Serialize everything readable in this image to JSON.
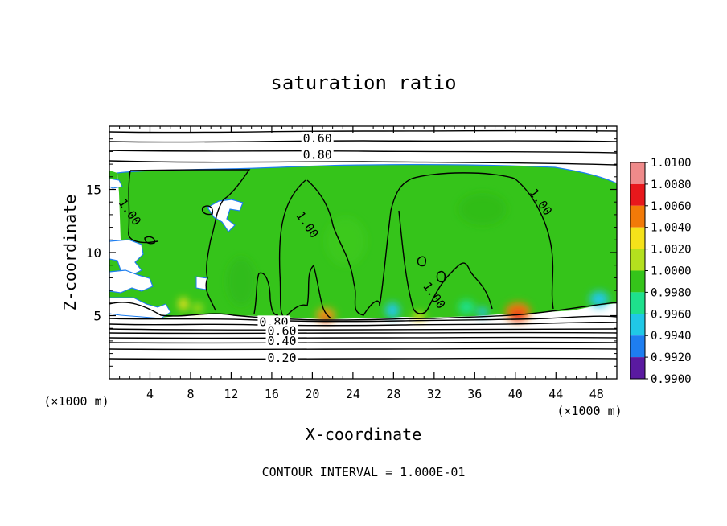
{
  "chart_data": {
    "type": "contour",
    "title": "saturation ratio",
    "xlabel": "X-coordinate",
    "ylabel": "Z-coordinate",
    "x_unit_label": "(×1000 m)",
    "z_unit_label": "(×1000 m)",
    "xlim": [
      0,
      50
    ],
    "ylim": [
      0,
      20
    ],
    "x_ticks": [
      4,
      8,
      12,
      16,
      20,
      24,
      28,
      32,
      36,
      40,
      44,
      48
    ],
    "x_tick_labels": [
      "4",
      "8",
      "12",
      "16",
      "20",
      "24",
      "28",
      "32",
      "36",
      "40",
      "44",
      "48"
    ],
    "y_ticks": [
      5,
      10,
      15
    ],
    "y_tick_labels": [
      "5",
      "10",
      "15"
    ],
    "footer": "CONTOUR INTERVAL = 1.000E-01",
    "colorbar": {
      "range": [
        0.99,
        1.01
      ],
      "tick_labels": [
        "1.0100",
        "1.0080",
        "1.0060",
        "1.0040",
        "1.0020",
        "1.0000",
        "0.9980",
        "0.9960",
        "0.9940",
        "0.9920",
        "0.9900"
      ],
      "colors": [
        "#ef8a8a",
        "#e8181c",
        "#f27a08",
        "#f5e21a",
        "#b4e01e",
        "#35c41a",
        "#1ee08c",
        "#20c8e6",
        "#1e7ef0",
        "#1a22d2",
        "#5a1aa0"
      ]
    },
    "contour_labels": [
      {
        "value": "0.60",
        "x": 20.5,
        "z": 19.05
      },
      {
        "value": "0.80",
        "x": 20.5,
        "z": 17.75
      },
      {
        "value": "1.00",
        "x": 2.0,
        "z": 13.2
      },
      {
        "value": "1.00",
        "x": 19.5,
        "z": 12.2
      },
      {
        "value": "1.00",
        "x": 42.5,
        "z": 14.0
      },
      {
        "value": "1.00",
        "x": 32.0,
        "z": 6.6
      },
      {
        "value": "0.80",
        "x": 16.2,
        "z": 4.5
      },
      {
        "value": "0.60",
        "x": 17.0,
        "z": 3.8
      },
      {
        "value": "0.40",
        "x": 17.0,
        "z": 3.0
      },
      {
        "value": "0.20",
        "x": 17.0,
        "z": 1.65
      }
    ],
    "hotspots": [
      {
        "x": 21.5,
        "z": 4.9,
        "value": 1.006
      },
      {
        "x": 40.5,
        "z": 5.1,
        "value": 1.008
      },
      {
        "x": 30.5,
        "z": 4.9,
        "value": 1.004
      },
      {
        "x": 7.5,
        "z": 5.1,
        "value": 1.004
      }
    ],
    "coldspots": [
      {
        "x": 27.5,
        "z": 5.0,
        "value": 0.996
      },
      {
        "x": 35.0,
        "z": 5.2,
        "value": 0.997
      },
      {
        "x": 47.0,
        "z": 6.2,
        "value": 0.996
      }
    ]
  }
}
